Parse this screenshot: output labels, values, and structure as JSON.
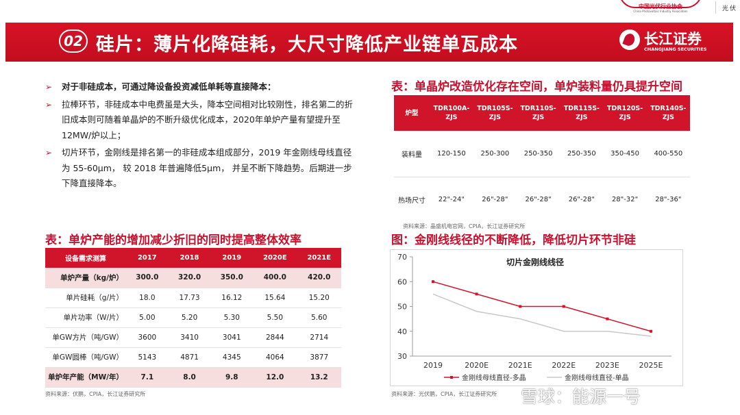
{
  "header": {
    "association_name": "中国光伏行业协会",
    "association_sub": "China Photovoltaic Industry Association",
    "tag": "光伏"
  },
  "title": {
    "number": "02",
    "text": "硅片：薄片化降硅耗，大尺寸降低产业链单瓦成本"
  },
  "brand": {
    "name": "长江证券",
    "en": "CHANGJIANG SECURITIES"
  },
  "bullets": [
    {
      "text": "对于非硅成本，可通过降设备投资减低单耗等直接降本：",
      "bold": true
    },
    {
      "text": "拉棒环节，非硅成本中电费虽是大头，降本空间相对比较刚性，排名第二的折旧成本则可随着单晶炉的不断升级优化成本，2020年单炉产量有望提升至12MW/炉以上；",
      "bold": false
    },
    {
      "text": "切片环节，金刚线是排名第一的非硅成本组成部分，2019 年金刚线母线直径为 55-60μm， 较 2018 年普遍降低5μm， 并呈不断下降趋势。后期进一步下降直接降本。",
      "bold": false
    }
  ],
  "right_table": {
    "title": "表：单晶炉改造优化存在空间，单炉装料量仍具提升空间",
    "headers": [
      "炉型",
      "TDR100A-ZJS",
      "TDR105S-ZJS",
      "TDR110S-ZJS",
      "TDR115S-ZJS",
      "TDR120S-ZJS",
      "TDR140S-ZJS"
    ],
    "rows": [
      [
        "装料量",
        "120-150",
        "250-300",
        "250-350",
        "250-350",
        "350-450",
        "400-550"
      ],
      [
        "热场尺寸",
        "22\"-24\"",
        "26\"-28\"",
        "26\"-28\"",
        "26\"-28\"",
        "28\"-32\"",
        "28\"-36\""
      ]
    ],
    "source": "资料来源：晶盛机电官网，CPIA，长江证券研究所"
  },
  "left_table": {
    "title": "表：单炉产能的增加减少折旧的同时提高整体效率",
    "headers": [
      "设备需求测算",
      "2017",
      "2018",
      "2019",
      "2020E",
      "2021E"
    ],
    "rows": [
      [
        "单炉产量（kg/炉）",
        "300.0",
        "320.0",
        "350.0",
        "400.0",
        "420.0"
      ],
      [
        "单片硅耗（g/片）",
        "18.0",
        "17.73",
        "16.12",
        "15.64",
        "15.20"
      ],
      [
        "单片功率（W/片）",
        "5.00",
        "5.20",
        "5.30",
        "5.50",
        "5.60"
      ],
      [
        "单GW方片（吨/GW）",
        "3600",
        "3410",
        "3041",
        "2844",
        "2714"
      ],
      [
        "单GW圆棒（吨/GW）",
        "5143",
        "4871",
        "4345",
        "4064",
        "3877"
      ],
      [
        "单炉年产能（MW/年）",
        "7.1",
        "8.0",
        "9.8",
        "12.0",
        "13.2"
      ]
    ],
    "source": "资料来源：伏鹏，CPIA，长江证券研究所"
  },
  "chart_section": {
    "title": "图：金刚线线径的不断降低，降低切片环节非硅",
    "source": "资料来源：光伏鹏，CPIA，长江证券研究所"
  },
  "chart_data": {
    "type": "line",
    "title": "切片金刚线线径",
    "categories": [
      "2019",
      "2020E",
      "2021E",
      "2022E",
      "2023E",
      "2025E"
    ],
    "series": [
      {
        "name": "金刚线母线直径-多晶",
        "values": [
          60,
          55,
          50,
          50,
          45,
          40
        ],
        "color": "#d0142a",
        "markers": true
      },
      {
        "name": "金刚线母线直径-单晶",
        "values": [
          55,
          48,
          45,
          40,
          40,
          38
        ],
        "color": "#c8c8c8",
        "markers": false
      }
    ],
    "ylim": [
      30,
      70
    ],
    "yticks": [
      30,
      40,
      50,
      60,
      70
    ],
    "legend": "bottom"
  },
  "watermark": "雪球：能源一号"
}
